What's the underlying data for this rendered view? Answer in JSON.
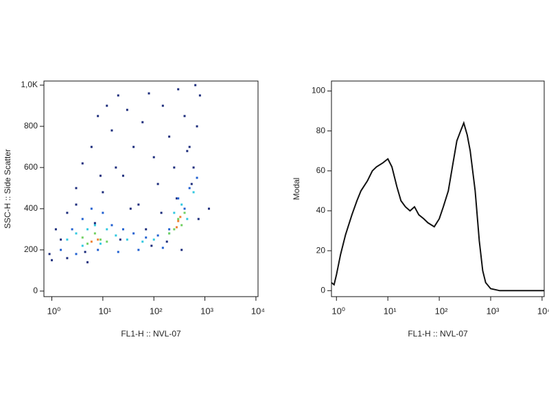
{
  "chart_data": [
    {
      "type": "scatter",
      "xlabel": "FL1-H :: NVL-07",
      "ylabel": "SSC-H :: Side Scatter",
      "xscale": "log",
      "xlim": [
        0.7,
        11000
      ],
      "ylim": [
        -27,
        1020
      ],
      "xticks": [
        {
          "value": 1,
          "label": "10⁰"
        },
        {
          "value": 10,
          "label": "10¹"
        },
        {
          "value": 100,
          "label": "10²"
        },
        {
          "value": 1000,
          "label": "10³"
        },
        {
          "value": 10000,
          "label": "10⁴"
        }
      ],
      "yticks": [
        0,
        200,
        400,
        600,
        800,
        {
          "value": 1000,
          "label": "1,0K"
        }
      ],
      "series": [
        {
          "color": "#1a2a7a",
          "x": [
            1,
            1.5,
            2,
            3,
            4,
            6,
            8,
            12,
            15,
            20,
            30,
            40,
            60,
            80,
            100,
            150,
            200,
            300,
            400,
            500,
            600,
            700,
            800,
            1200,
            2,
            5,
            10,
            25,
            50,
            120,
            250,
            450,
            650,
            3,
            7,
            18,
            35,
            70,
            140,
            280,
            550,
            1.2,
            9,
            22,
            90,
            180,
            350,
            750,
            0.9,
            4.5
          ],
          "values": [
            150,
            250,
            380,
            500,
            620,
            700,
            850,
            900,
            780,
            950,
            880,
            700,
            820,
            960,
            650,
            900,
            750,
            980,
            850,
            700,
            600,
            800,
            950,
            400,
            160,
            140,
            480,
            560,
            420,
            520,
            600,
            680,
            1000,
            420,
            330,
            600,
            400,
            300,
            380,
            450,
            520,
            300,
            560,
            250,
            220,
            240,
            200,
            350,
            180,
            190
          ]
        },
        {
          "color": "#1f5fd0",
          "x": [
            1.5,
            2.5,
            4,
            6,
            10,
            15,
            25,
            40,
            70,
            120,
            200,
            300,
            500,
            700,
            3,
            8,
            20,
            50,
            150,
            400
          ],
          "values": [
            200,
            300,
            350,
            400,
            380,
            320,
            300,
            280,
            260,
            270,
            300,
            450,
            500,
            550,
            180,
            200,
            190,
            200,
            210,
            400
          ]
        },
        {
          "color": "#30c8e0",
          "x": [
            2,
            3,
            5,
            7,
            12,
            18,
            30,
            60,
            100,
            200,
            250,
            350,
            450,
            600,
            4,
            9
          ],
          "values": [
            250,
            280,
            300,
            320,
            300,
            270,
            250,
            240,
            250,
            280,
            380,
            420,
            350,
            480,
            220,
            230
          ]
        },
        {
          "color": "#70d060",
          "x": [
            4,
            5,
            7,
            9,
            12,
            250,
            300,
            350,
            400,
            200
          ],
          "values": [
            260,
            230,
            280,
            250,
            240,
            300,
            350,
            320,
            380,
            280
          ]
        },
        {
          "color": "#f08030",
          "x": [
            6,
            8,
            300,
            330,
            280
          ],
          "values": [
            240,
            250,
            340,
            360,
            310
          ]
        }
      ]
    },
    {
      "type": "line",
      "xlabel": "FL1-H :: NVL-07",
      "ylabel": "Modal",
      "xscale": "log",
      "xlim": [
        0.8,
        11000
      ],
      "ylim": [
        -3,
        105
      ],
      "xticks": [
        {
          "value": 1,
          "label": "10⁰"
        },
        {
          "value": 10,
          "label": "10¹"
        },
        {
          "value": 100,
          "label": "10²"
        },
        {
          "value": 1000,
          "label": "10³"
        },
        {
          "value": 10000,
          "label": "10⁴"
        }
      ],
      "yticks": [
        0,
        20,
        40,
        60,
        80,
        100
      ],
      "color": "#111111",
      "x": [
        0.8,
        0.9,
        1.0,
        1.2,
        1.5,
        2,
        2.5,
        3,
        4,
        5,
        6,
        8,
        10,
        12,
        15,
        18,
        22,
        27,
        33,
        40,
        50,
        60,
        80,
        100,
        120,
        150,
        180,
        220,
        260,
        300,
        350,
        400,
        500,
        600,
        700,
        800,
        1000,
        1500,
        3000,
        11000
      ],
      "values": [
        4,
        3,
        8,
        18,
        28,
        38,
        45,
        50,
        55,
        60,
        62,
        64,
        66,
        62,
        52,
        45,
        42,
        40,
        42,
        38,
        36,
        34,
        32,
        36,
        42,
        50,
        62,
        75,
        80,
        84,
        78,
        70,
        50,
        25,
        10,
        4,
        1,
        0,
        0,
        0
      ]
    }
  ]
}
